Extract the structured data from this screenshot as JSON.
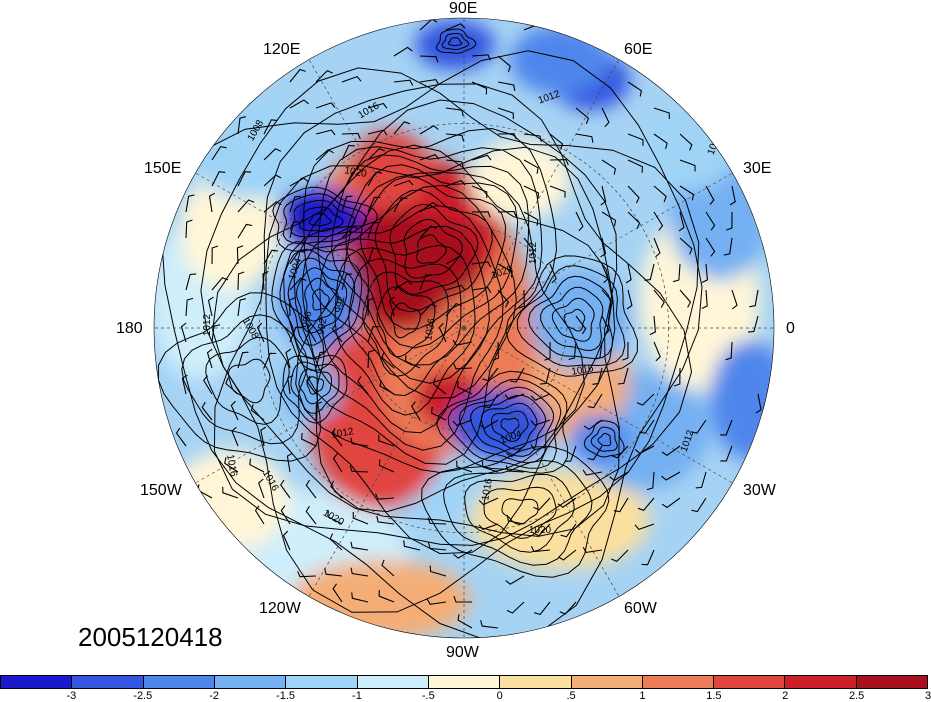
{
  "map": {
    "datestamp": "2005120418",
    "longitude_labels": {
      "lon_90E": "90E",
      "lon_60E": "60E",
      "lon_30E": "30E",
      "lon_0": "0",
      "lon_30W": "30W",
      "lon_60W": "60W",
      "lon_90W": "90W",
      "lon_120W": "120W",
      "lon_150W": "150W",
      "lon_180": "180",
      "lon_150E": "150E",
      "lon_120E": "120E"
    },
    "contour_labels": [
      "1016",
      "1012",
      "1008",
      "1020",
      "1004",
      "996",
      "992",
      "1036",
      "1012",
      "1008",
      "1012",
      "1016",
      "1016",
      "1020",
      "1016",
      "1012",
      "1016",
      "1020",
      "1020",
      "1004",
      "1008",
      "1012",
      "992"
    ],
    "colorbar": {
      "colors": [
        "#1a1acc",
        "#3355e0",
        "#4f86ec",
        "#74b0f2",
        "#9fd4f7",
        "#cfeefb",
        "#fff6d8",
        "#fbdf9e",
        "#f4ad76",
        "#ec7b57",
        "#e04540",
        "#cc1f2a",
        "#a8101e"
      ],
      "ticks": [
        "-3",
        "-2.5",
        "-2",
        "-1.5",
        "-1",
        "-.5",
        "0",
        ".5",
        "1",
        "1.5",
        "2",
        "2.5",
        "3"
      ]
    }
  }
}
